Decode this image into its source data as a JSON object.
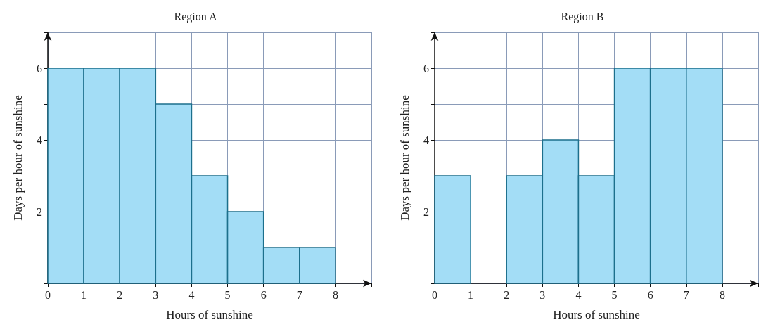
{
  "chart_data": [
    {
      "type": "histogram",
      "title": "Region A",
      "xlabel": "Hours of sunshine",
      "ylabel": "Days per hour of sunshine",
      "bins": [
        0,
        1,
        2,
        3,
        4,
        5,
        6,
        7,
        8
      ],
      "values": [
        6,
        6,
        6,
        5,
        3,
        2,
        1,
        1
      ],
      "color": "#a3ddf6",
      "xlim": [
        0,
        9
      ],
      "xticks": [
        0,
        1,
        2,
        3,
        4,
        5,
        6,
        7,
        8,
        {
          "value": 9,
          "label": null
        }
      ],
      "ylim": [
        0,
        7
      ],
      "yticks": [
        {
          "value": 0,
          "label": null
        },
        {
          "value": 1,
          "label": null
        },
        2,
        {
          "value": 3,
          "label": null
        },
        4,
        {
          "value": 5,
          "label": null
        },
        6,
        {
          "value": 7,
          "label": null
        }
      ],
      "grid": true
    },
    {
      "type": "histogram",
      "title": "Region B",
      "xlabel": "Hours of sunshine",
      "ylabel": "Days per hour of sunshine",
      "bins": [
        0,
        1,
        2,
        3,
        4,
        5,
        6,
        7,
        8
      ],
      "values": [
        3,
        0,
        3,
        4,
        3,
        6,
        6,
        6
      ],
      "color": "#a3ddf6",
      "xlim": [
        0,
        9
      ],
      "xticks": [
        0,
        1,
        2,
        3,
        4,
        5,
        6,
        7,
        8,
        {
          "value": 9,
          "label": null
        }
      ],
      "ylim": [
        0,
        7
      ],
      "yticks": [
        {
          "value": 0,
          "label": null
        },
        {
          "value": 1,
          "label": null
        },
        2,
        {
          "value": 3,
          "label": null
        },
        4,
        {
          "value": 5,
          "label": null
        },
        6,
        {
          "value": 7,
          "label": null
        }
      ],
      "grid": true
    }
  ]
}
